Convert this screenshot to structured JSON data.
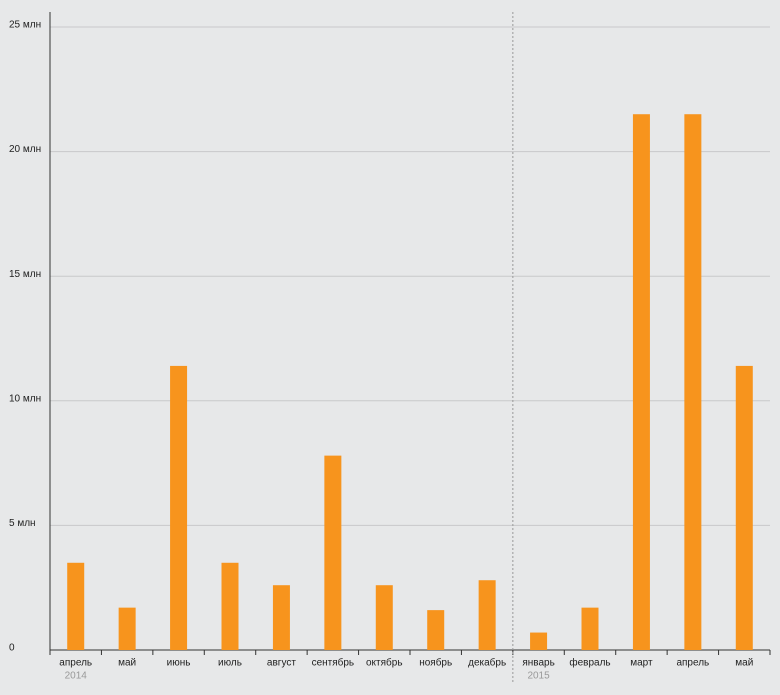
{
  "chart_data": {
    "type": "bar",
    "categories": [
      "апрель",
      "май",
      "июнь",
      "июль",
      "август",
      "сентябрь",
      "октябрь",
      "ноябрь",
      "декабрь",
      "январь",
      "февраль",
      "март",
      "апрель",
      "май"
    ],
    "values": [
      3.5,
      1.7,
      11.4,
      3.5,
      2.6,
      7.8,
      2.6,
      1.6,
      2.8,
      0.7,
      1.7,
      21.5,
      21.5,
      11.4
    ],
    "color": "#f7941d",
    "year_groups": [
      {
        "label": "2014",
        "start": 0
      },
      {
        "label": "2015",
        "start": 9
      }
    ],
    "ylim": [
      0,
      25
    ],
    "yticks": [
      0,
      {
        "value": 5,
        "label": "5 млн"
      },
      {
        "value": 10,
        "label": "10 млн"
      },
      {
        "value": 15,
        "label": "15 млн"
      },
      {
        "value": 20,
        "label": "20 млн"
      },
      {
        "value": 25,
        "label": "25 млн"
      }
    ],
    "grid": true
  }
}
